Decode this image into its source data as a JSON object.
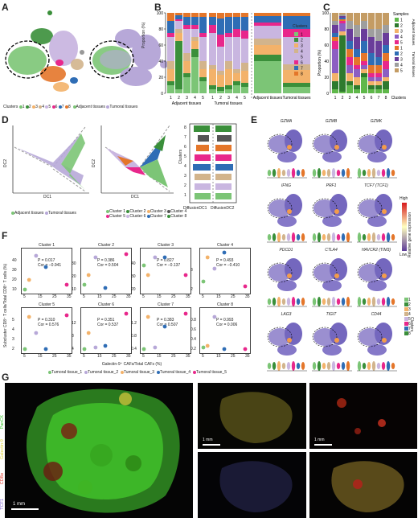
{
  "panels": {
    "A": "A",
    "B": "B",
    "C": "C",
    "D": "D",
    "E": "E",
    "F": "F",
    "G": "G"
  },
  "clusters_colors": [
    "#7cc576",
    "#3a8f3a",
    "#f3b26a",
    "#d2b48c",
    "#c9b6e0",
    "#e8278b",
    "#2f6db5",
    "#e4762a"
  ],
  "panelA": {
    "clusters_label": "Clusters",
    "cluster_ids": [
      "1",
      "2",
      "3",
      "4",
      "5",
      "6",
      "7",
      "8"
    ],
    "legend_adjacent": "Adjacent tissues",
    "legend_tumoral": "Tumoral tissues",
    "adjacent_color": "#7cc576",
    "tumoral_color": "#b7a8d8"
  },
  "panelB": {
    "ylabel": "Proportion (%)",
    "yticks": [
      "0",
      "20",
      "40",
      "60",
      "80",
      "100"
    ],
    "xticks_adjacent": [
      "1",
      "2",
      "3",
      "4",
      "5"
    ],
    "xticks_tumoral": [
      "1",
      "2",
      "3",
      "4",
      "5"
    ],
    "group_adjacent": "Adjacent tissues",
    "group_tumoral": "Tumoral tissues",
    "legend_title": "Clusters",
    "legend_items": [
      "1",
      "2",
      "3",
      "4",
      "5",
      "6",
      "7",
      "8"
    ]
  },
  "panelC": {
    "ylabel": "Proportion (%)",
    "yticks": [
      "0",
      "20",
      "40",
      "60",
      "80",
      "100"
    ],
    "xticks": [
      "1",
      "2",
      "3",
      "4",
      "5",
      "6",
      "7",
      "8"
    ],
    "xlabel": "Clusters",
    "legend_title": "Samples",
    "legend_items": [
      "1",
      "2",
      "3",
      "4",
      "5",
      "1",
      "2",
      "3",
      "4",
      "5"
    ],
    "group_adjacent": "Adjacent tissues",
    "group_tumoral": "Tumoral tissues"
  },
  "panelD": {
    "dc1": "DC1",
    "dc2": "DC2",
    "legend_adjacent": "Adjacent tissues",
    "legend_tumoral": "Tumoral tissues",
    "cluster_legend": [
      "Cluster 1",
      "Cluster 2",
      "Cluster 3",
      "Cluster 4",
      "Cluster 5",
      "Cluster 6",
      "Cluster 7",
      "Cluster 8"
    ],
    "strip_ylabel": "Clusters",
    "strip_xlabels": [
      "DiffusionDC1",
      "DiffusionDC2"
    ],
    "strip_ticks": [
      "8",
      "7",
      "6",
      "5",
      "4",
      "3",
      "2",
      "1"
    ]
  },
  "panelE": {
    "genes": [
      "GZMA",
      "GZMB",
      "GZMK",
      "IFNG",
      "PRF1",
      "TCF7 (TCF1)",
      "PDCD1",
      "CTLA4",
      "HAVCR2 (TIM3)",
      "LAG3",
      "TIGIT",
      "CD44"
    ],
    "scale_high": "High",
    "scale_low": "Low",
    "scale_label": "Relative gene expression",
    "clusters_label": "Clusters",
    "cluster_ids": [
      "1",
      "2",
      "3",
      "4",
      "5",
      "6",
      "7",
      "8"
    ]
  },
  "panelF": {
    "ylabel": "Subcluster CD8⁺ T cells/Total CD8⁺ T cells (%)",
    "xlabel": "Galectin-9⁺ CAFs/Total CAFs (%)",
    "boxes": [
      {
        "title": "Cluster 1",
        "p": "P = 0.017",
        "cor": "Cor = −0.941",
        "yticks": [
          "10",
          "20",
          "30",
          "40"
        ]
      },
      {
        "title": "Cluster 2",
        "p": "P = 0.386",
        "cor": "Cor = 0.504",
        "yticks": [
          "10",
          "20",
          "30"
        ]
      },
      {
        "title": "Cluster 3",
        "p": "P = 0.827",
        "cor": "Cor = −0.137",
        "yticks": [
          "20",
          "30",
          "40"
        ]
      },
      {
        "title": "Cluster 4",
        "p": "P = 0.493",
        "cor": "Cor = −0.410",
        "yticks": [
          "2",
          "3"
        ]
      },
      {
        "title": "Cluster 5",
        "p": "P = 0.310",
        "cor": "Cor = 0.576",
        "yticks": [
          "2",
          "3",
          "4",
          "5"
        ]
      },
      {
        "title": "Cluster 6",
        "p": "P = 0.351",
        "cor": "Cor = 0.537",
        "yticks": [
          "4",
          "8",
          "12"
        ]
      },
      {
        "title": "Cluster 7",
        "p": "P = 0.383",
        "cor": "Cor = 0.507",
        "yticks": [
          "0.4",
          "0.8",
          "1.2"
        ]
      },
      {
        "title": "Cluster 8",
        "p": "P = 0.993",
        "cor": "Cor = 0.006",
        "yticks": [
          "0.2",
          "0.4",
          "0.6",
          "0.8"
        ]
      }
    ],
    "xticks": [
      "5",
      "15",
      "25",
      "35"
    ],
    "legend": [
      {
        "label": "Tumoral tissue_1",
        "color": "#7cc576"
      },
      {
        "label": "Tumoral tissue_2",
        "color": "#b7a8d8"
      },
      {
        "label": "Tumoral tissue_3",
        "color": "#f3b26a"
      },
      {
        "label": "Tumoral tissue_4",
        "color": "#2f6db5"
      },
      {
        "label": "Tumoral tissue_5",
        "color": "#e8278b"
      }
    ]
  },
  "panelG": {
    "channels": [
      "PanCK",
      "Galectin-9",
      "CD8α",
      "TCF1"
    ],
    "scalebar_main": "1 mm",
    "scalebar_small": "1 mm"
  },
  "chart_data": [
    {
      "type": "bar",
      "title": "",
      "ylabel": "Proportion (%)",
      "ylim": [
        0,
        100
      ],
      "categories": [
        "Adjacent 1",
        "Adjacent 2",
        "Adjacent 3",
        "Adjacent 4",
        "Adjacent 5",
        "Tumoral 1",
        "Tumoral 2",
        "Tumoral 3",
        "Tumoral 4",
        "Tumoral 5",
        "Adjacent tissues",
        "Tumoral tissues"
      ],
      "series": [
        {
          "name": "1",
          "values": [
            10,
            5,
            20,
            45,
            15,
            5,
            3,
            5,
            10,
            8,
            40,
            8
          ]
        },
        {
          "name": "2",
          "values": [
            5,
            60,
            5,
            10,
            5,
            5,
            5,
            5,
            5,
            5,
            8,
            5
          ]
        },
        {
          "name": "3",
          "values": [
            15,
            10,
            15,
            10,
            10,
            20,
            15,
            20,
            10,
            15,
            12,
            16
          ]
        },
        {
          "name": "4",
          "values": [
            10,
            5,
            10,
            5,
            10,
            5,
            5,
            10,
            5,
            10,
            8,
            7
          ]
        },
        {
          "name": "5",
          "values": [
            30,
            10,
            30,
            10,
            30,
            40,
            30,
            30,
            40,
            30,
            16,
            34
          ]
        },
        {
          "name": "6",
          "values": [
            5,
            2,
            5,
            5,
            5,
            10,
            15,
            5,
            10,
            10,
            4,
            10
          ]
        },
        {
          "name": "7",
          "values": [
            15,
            5,
            10,
            10,
            20,
            10,
            20,
            20,
            15,
            17,
            8,
            16
          ]
        },
        {
          "name": "8",
          "values": [
            10,
            3,
            5,
            5,
            5,
            5,
            7,
            5,
            5,
            5,
            4,
            4
          ]
        }
      ]
    },
    {
      "type": "bar",
      "title": "",
      "ylabel": "Proportion (%)",
      "xlabel": "Clusters",
      "ylim": [
        0,
        100
      ],
      "categories": [
        "1",
        "2",
        "3",
        "4",
        "5",
        "6",
        "7",
        "8"
      ],
      "series": [
        {
          "name": "Adjacent 1",
          "values": [
            5,
            2,
            10,
            5,
            20,
            5,
            5,
            5
          ]
        },
        {
          "name": "Adjacent 2",
          "values": [
            10,
            70,
            5,
            5,
            5,
            5,
            5,
            10
          ]
        },
        {
          "name": "Adjacent 3",
          "values": [
            10,
            5,
            10,
            10,
            5,
            5,
            5,
            5
          ]
        },
        {
          "name": "Adjacent 4",
          "values": [
            30,
            10,
            10,
            10,
            5,
            5,
            5,
            10
          ]
        },
        {
          "name": "Adjacent 5",
          "values": [
            10,
            3,
            10,
            5,
            5,
            5,
            5,
            10
          ]
        },
        {
          "name": "Tumoral 1",
          "values": [
            5,
            2,
            10,
            10,
            10,
            10,
            10,
            10
          ]
        },
        {
          "name": "Tumoral 2",
          "values": [
            5,
            2,
            10,
            10,
            15,
            15,
            10,
            10
          ]
        },
        {
          "name": "Tumoral 3",
          "values": [
            10,
            2,
            15,
            15,
            15,
            20,
            20,
            15
          ]
        },
        {
          "name": "Tumoral 4",
          "values": [
            5,
            2,
            10,
            15,
            10,
            10,
            15,
            10
          ]
        },
        {
          "name": "Tumoral 5",
          "values": [
            10,
            2,
            10,
            15,
            10,
            20,
            20,
            15
          ]
        }
      ]
    },
    {
      "type": "scatter",
      "title": "Cluster 1",
      "xlabel": "Galectin-9⁺ CAFs/Total CAFs (%)",
      "ylabel": "Subcluster CD8⁺ T cells/Total CD8⁺ T cells (%)",
      "series": [
        {
          "name": "Tumoral tissue_1",
          "x": [
            5
          ],
          "y": [
            40
          ]
        },
        {
          "name": "Tumoral tissue_2",
          "x": [
            13
          ],
          "y": [
            30
          ]
        },
        {
          "name": "Tumoral tissue_3",
          "x": [
            8
          ],
          "y": [
            33
          ]
        },
        {
          "name": "Tumoral tissue_4",
          "x": [
            20
          ],
          "y": [
            25
          ]
        },
        {
          "name": "Tumoral tissue_5",
          "x": [
            35
          ],
          "y": [
            10
          ]
        }
      ]
    }
  ]
}
